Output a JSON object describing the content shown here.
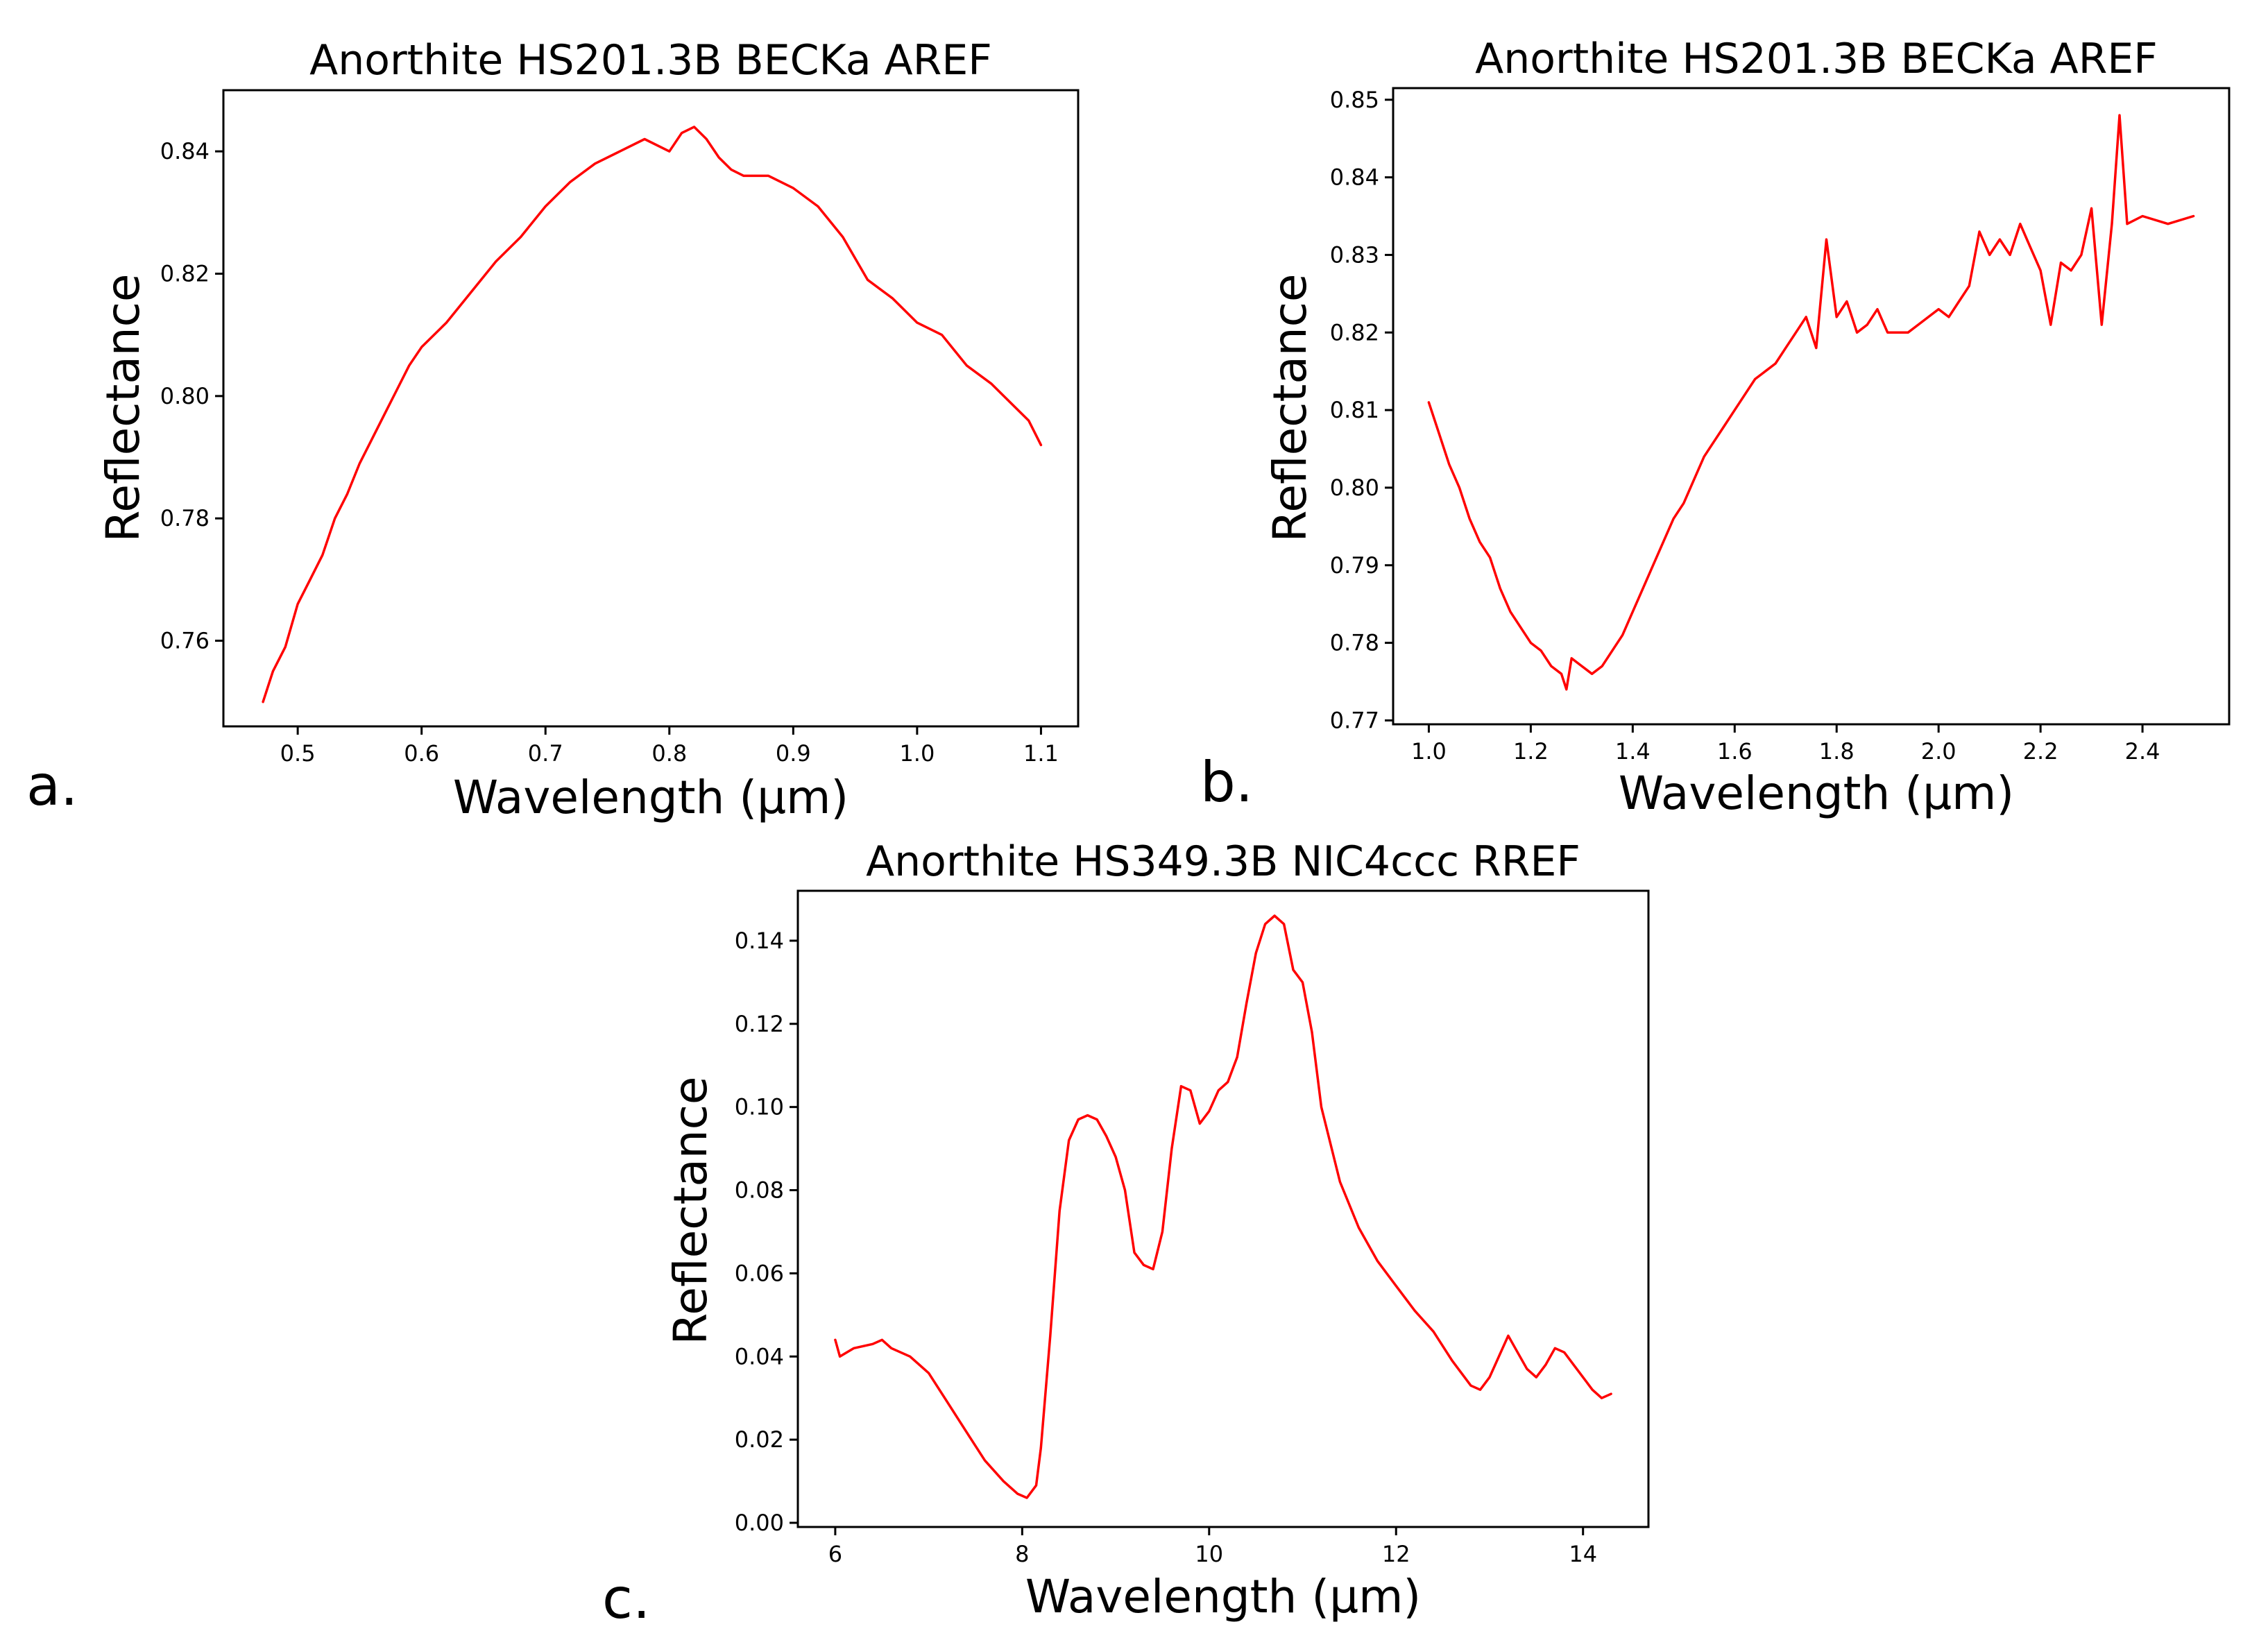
{
  "chart_data": [
    {
      "type": "line",
      "panel_letter": "a.",
      "title": "Anorthite HS201.3B BECKa AREF",
      "xlabel": "Wavelength (μm)",
      "ylabel": "Reflectance",
      "xlim": [
        0.44,
        1.13
      ],
      "ylim": [
        0.746,
        0.85
      ],
      "xticks": [
        0.5,
        0.6,
        0.7,
        0.8,
        0.9,
        1.0,
        1.1
      ],
      "xtick_labels": [
        "0.5",
        "0.6",
        "0.7",
        "0.8",
        "0.9",
        "1.0",
        "1.1"
      ],
      "yticks": [
        0.76,
        0.78,
        0.8,
        0.82,
        0.84
      ],
      "ytick_labels": [
        "0.76",
        "0.78",
        "0.80",
        "0.82",
        "0.84"
      ],
      "color": "#ff0000",
      "series": [
        {
          "name": "Anorthite HS201.3B BECKa AREF",
          "x": [
            0.472,
            0.48,
            0.49,
            0.5,
            0.51,
            0.52,
            0.53,
            0.54,
            0.55,
            0.56,
            0.57,
            0.58,
            0.59,
            0.6,
            0.62,
            0.64,
            0.66,
            0.68,
            0.7,
            0.72,
            0.74,
            0.76,
            0.78,
            0.8,
            0.81,
            0.82,
            0.83,
            0.84,
            0.85,
            0.86,
            0.88,
            0.9,
            0.92,
            0.94,
            0.96,
            0.98,
            1.0,
            1.02,
            1.04,
            1.06,
            1.08,
            1.09,
            1.1
          ],
          "y": [
            0.75,
            0.755,
            0.759,
            0.766,
            0.77,
            0.774,
            0.78,
            0.784,
            0.789,
            0.793,
            0.797,
            0.801,
            0.805,
            0.808,
            0.812,
            0.817,
            0.822,
            0.826,
            0.831,
            0.835,
            0.838,
            0.84,
            0.842,
            0.84,
            0.843,
            0.844,
            0.842,
            0.839,
            0.837,
            0.836,
            0.836,
            0.834,
            0.831,
            0.826,
            0.819,
            0.816,
            0.812,
            0.81,
            0.805,
            0.802,
            0.798,
            0.796,
            0.792
          ]
        }
      ]
    },
    {
      "type": "line",
      "panel_letter": "b.",
      "title": "Anorthite HS201.3B BECKa AREF",
      "xlabel": "Wavelength (μm)",
      "ylabel": "Reflectance",
      "xlim": [
        0.93,
        2.57
      ],
      "ylim": [
        0.7695,
        0.8515
      ],
      "xticks": [
        1.0,
        1.2,
        1.4,
        1.6,
        1.8,
        2.0,
        2.2,
        2.4
      ],
      "xtick_labels": [
        "1.0",
        "1.2",
        "1.4",
        "1.6",
        "1.8",
        "2.0",
        "2.2",
        "2.4"
      ],
      "yticks": [
        0.77,
        0.78,
        0.79,
        0.8,
        0.81,
        0.82,
        0.83,
        0.84,
        0.85
      ],
      "ytick_labels": [
        "0.77",
        "0.78",
        "0.79",
        "0.80",
        "0.81",
        "0.82",
        "0.83",
        "0.84",
        "0.85"
      ],
      "color": "#ff0000",
      "series": [
        {
          "name": "Anorthite HS201.3B BECKa AREF",
          "x": [
            1.0,
            1.02,
            1.04,
            1.06,
            1.08,
            1.1,
            1.12,
            1.14,
            1.16,
            1.18,
            1.2,
            1.22,
            1.24,
            1.26,
            1.27,
            1.28,
            1.3,
            1.32,
            1.34,
            1.36,
            1.38,
            1.4,
            1.42,
            1.44,
            1.46,
            1.48,
            1.5,
            1.52,
            1.54,
            1.56,
            1.58,
            1.6,
            1.62,
            1.64,
            1.66,
            1.68,
            1.7,
            1.72,
            1.74,
            1.76,
            1.78,
            1.8,
            1.82,
            1.84,
            1.86,
            1.88,
            1.9,
            1.92,
            1.94,
            1.96,
            1.98,
            2.0,
            2.02,
            2.04,
            2.06,
            2.08,
            2.1,
            2.12,
            2.14,
            2.16,
            2.18,
            2.2,
            2.22,
            2.24,
            2.26,
            2.28,
            2.3,
            2.32,
            2.34,
            2.355,
            2.37,
            2.4,
            2.45,
            2.5
          ],
          "y": [
            0.811,
            0.807,
            0.803,
            0.8,
            0.796,
            0.793,
            0.791,
            0.787,
            0.784,
            0.782,
            0.78,
            0.779,
            0.777,
            0.776,
            0.774,
            0.778,
            0.777,
            0.776,
            0.777,
            0.779,
            0.781,
            0.784,
            0.787,
            0.79,
            0.793,
            0.796,
            0.798,
            0.801,
            0.804,
            0.806,
            0.808,
            0.81,
            0.812,
            0.814,
            0.815,
            0.816,
            0.818,
            0.82,
            0.822,
            0.818,
            0.832,
            0.822,
            0.824,
            0.82,
            0.821,
            0.823,
            0.82,
            0.82,
            0.82,
            0.821,
            0.822,
            0.823,
            0.822,
            0.824,
            0.826,
            0.833,
            0.83,
            0.832,
            0.83,
            0.834,
            0.831,
            0.828,
            0.821,
            0.829,
            0.828,
            0.83,
            0.836,
            0.821,
            0.834,
            0.848,
            0.834,
            0.835,
            0.834,
            0.835
          ]
        }
      ]
    },
    {
      "type": "line",
      "panel_letter": "c.",
      "title": "Anorthite HS349.3B NIC4ccc RREF",
      "xlabel": "Wavelength (μm)",
      "ylabel": "Reflectance",
      "xlim": [
        5.6,
        14.7
      ],
      "ylim": [
        -0.001,
        0.152
      ],
      "xticks": [
        6,
        8,
        10,
        12,
        14
      ],
      "xtick_labels": [
        "6",
        "8",
        "10",
        "12",
        "14"
      ],
      "yticks": [
        0.0,
        0.02,
        0.04,
        0.06,
        0.08,
        0.1,
        0.12,
        0.14
      ],
      "ytick_labels": [
        "0.00",
        "0.02",
        "0.04",
        "0.06",
        "0.08",
        "0.10",
        "0.12",
        "0.14"
      ],
      "color": "#ff0000",
      "series": [
        {
          "name": "Anorthite HS349.3B NIC4ccc RREF",
          "x": [
            6.0,
            6.05,
            6.2,
            6.4,
            6.5,
            6.6,
            6.8,
            7.0,
            7.2,
            7.4,
            7.6,
            7.8,
            7.95,
            8.05,
            8.15,
            8.2,
            8.3,
            8.4,
            8.5,
            8.6,
            8.7,
            8.8,
            8.9,
            9.0,
            9.1,
            9.2,
            9.3,
            9.4,
            9.5,
            9.6,
            9.7,
            9.8,
            9.9,
            10.0,
            10.1,
            10.2,
            10.3,
            10.4,
            10.5,
            10.6,
            10.7,
            10.8,
            10.9,
            11.0,
            11.1,
            11.2,
            11.4,
            11.6,
            11.8,
            12.0,
            12.2,
            12.4,
            12.6,
            12.8,
            12.9,
            13.0,
            13.1,
            13.2,
            13.3,
            13.4,
            13.5,
            13.6,
            13.7,
            13.8,
            13.9,
            14.0,
            14.1,
            14.2,
            14.3
          ],
          "y": [
            0.044,
            0.04,
            0.042,
            0.043,
            0.044,
            0.042,
            0.04,
            0.036,
            0.029,
            0.022,
            0.015,
            0.01,
            0.007,
            0.006,
            0.009,
            0.018,
            0.045,
            0.075,
            0.092,
            0.097,
            0.098,
            0.097,
            0.093,
            0.088,
            0.08,
            0.065,
            0.062,
            0.061,
            0.07,
            0.09,
            0.105,
            0.104,
            0.096,
            0.099,
            0.104,
            0.106,
            0.112,
            0.125,
            0.137,
            0.144,
            0.146,
            0.144,
            0.133,
            0.13,
            0.118,
            0.1,
            0.082,
            0.071,
            0.063,
            0.057,
            0.051,
            0.046,
            0.039,
            0.033,
            0.032,
            0.035,
            0.04,
            0.045,
            0.041,
            0.037,
            0.035,
            0.038,
            0.042,
            0.041,
            0.038,
            0.035,
            0.032,
            0.03,
            0.031
          ]
        }
      ]
    }
  ]
}
